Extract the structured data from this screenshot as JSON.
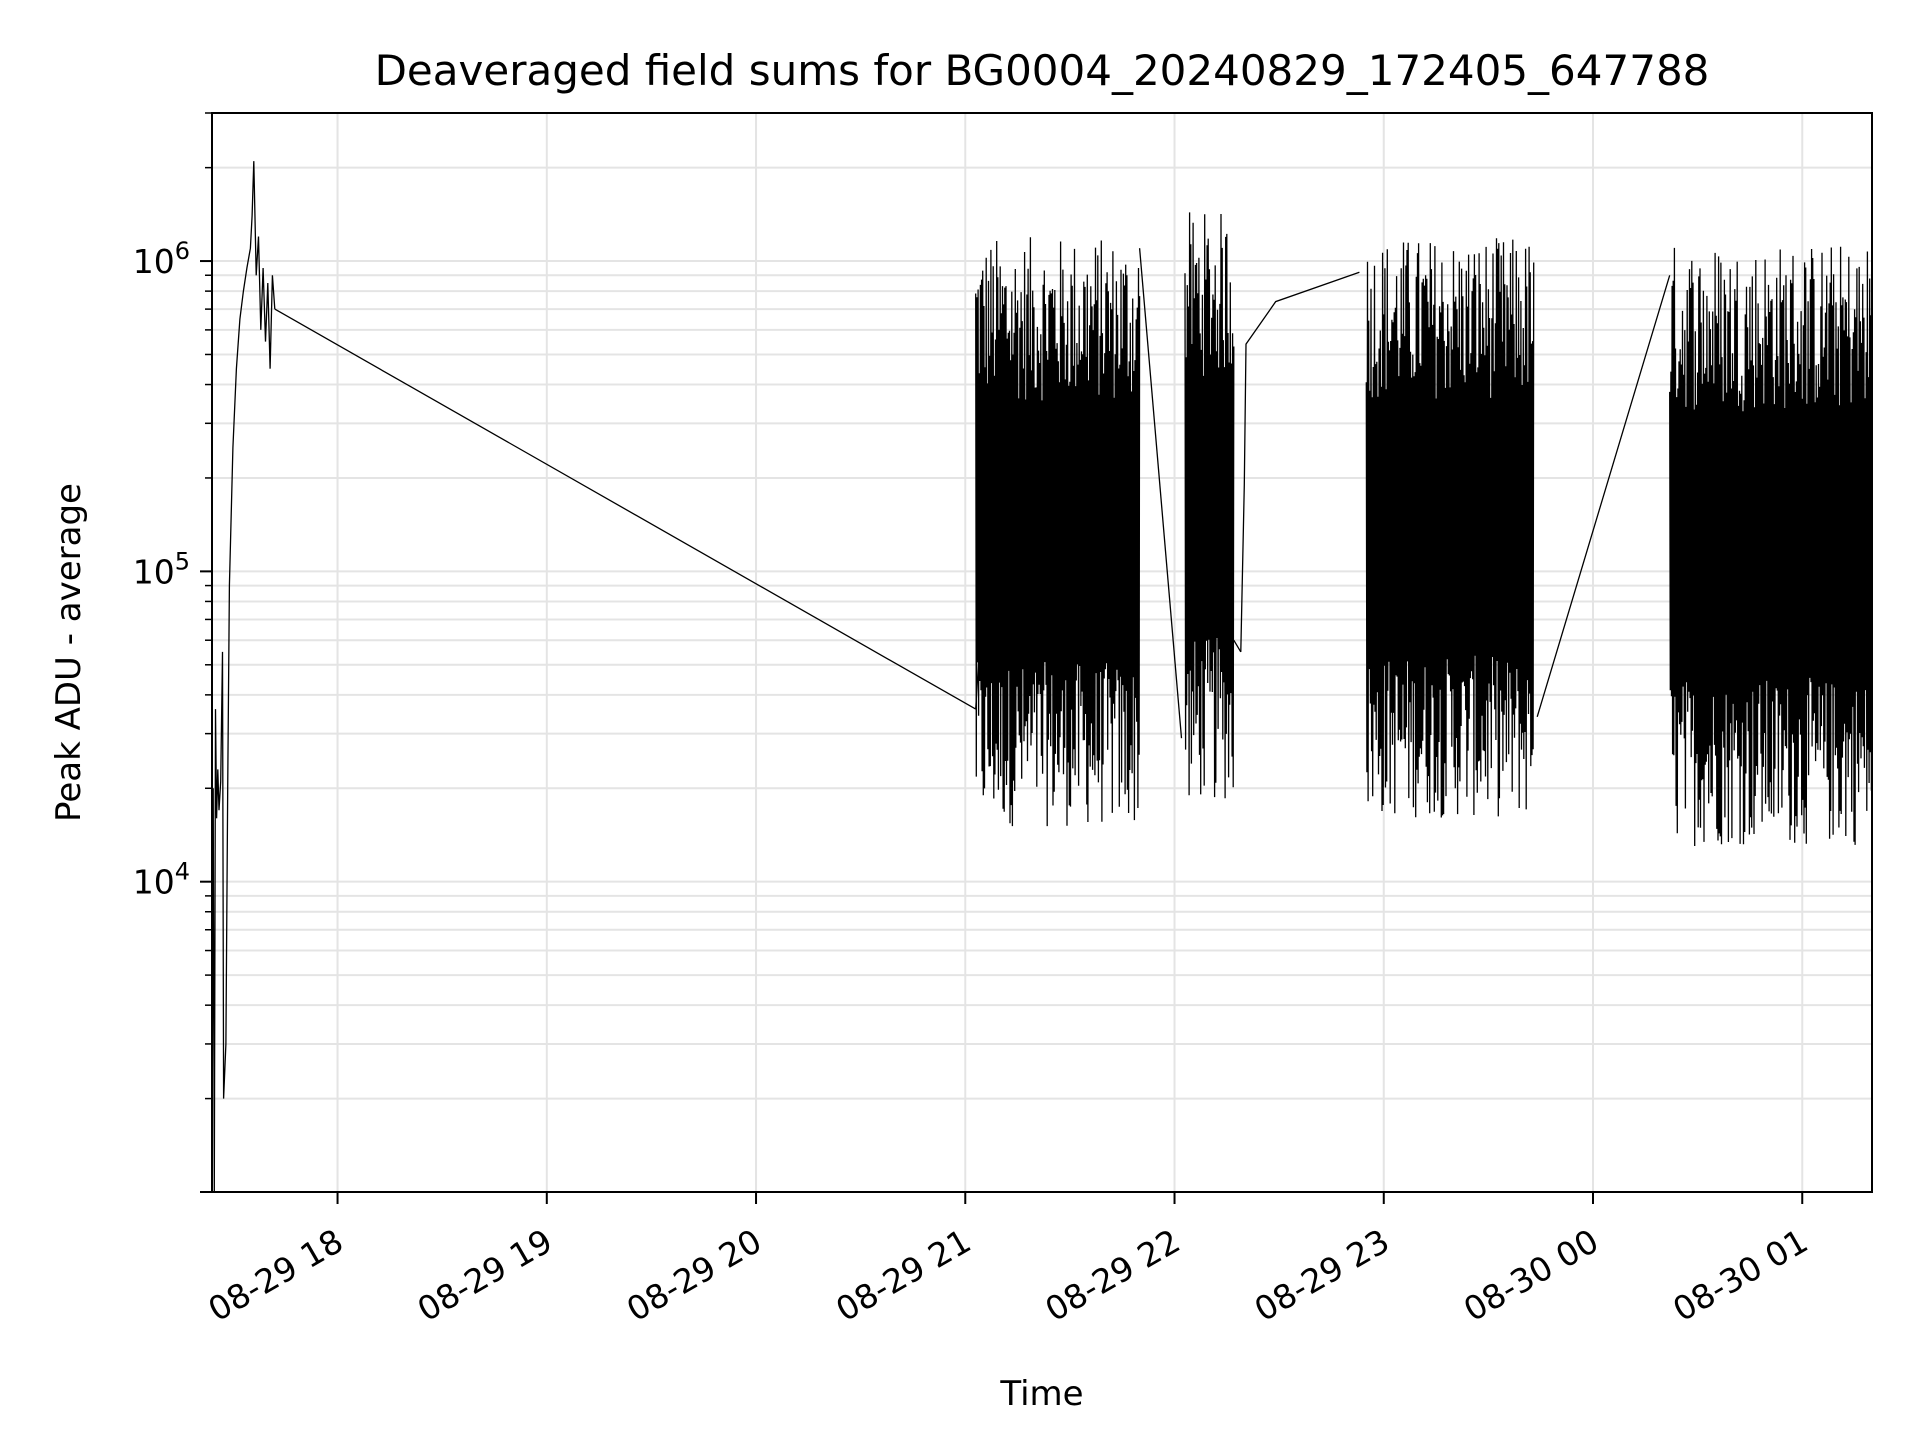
{
  "chart_data": {
    "type": "line",
    "title": "Deaveraged field sums for BG0004_20240829_172405_647788",
    "xlabel": "Time",
    "ylabel": "Peak ADU - average",
    "yscale": "log",
    "xlim": [
      "2024-08-29 17:24",
      "2024-08-30 01:20"
    ],
    "ylim": [
      1000,
      3000000
    ],
    "grid": true,
    "x_ticks": [
      {
        "value": "2024-08-29 18:00",
        "label": "08-29 18"
      },
      {
        "value": "2024-08-29 19:00",
        "label": "08-29 19"
      },
      {
        "value": "2024-08-29 20:00",
        "label": "08-29 20"
      },
      {
        "value": "2024-08-29 21:00",
        "label": "08-29 21"
      },
      {
        "value": "2024-08-29 22:00",
        "label": "08-29 22"
      },
      {
        "value": "2024-08-29 23:00",
        "label": "08-29 23"
      },
      {
        "value": "2024-08-30 00:00",
        "label": "08-30 00"
      },
      {
        "value": "2024-08-30 01:00",
        "label": "08-30 01"
      }
    ],
    "y_ticks": [
      {
        "value": 10000,
        "base": "10",
        "exp": "4"
      },
      {
        "value": 100000,
        "base": "10",
        "exp": "5"
      },
      {
        "value": 1000000,
        "base": "10",
        "exp": "6"
      }
    ],
    "series": [
      {
        "color": "#000000",
        "segments": [
          {
            "x_start": "2024-08-29 17:24",
            "x_end": "2024-08-29 17:46",
            "low": 15000,
            "high": 1200000,
            "points": [
              [
                "2024-08-29 17:24:00",
                1000
              ],
              [
                "2024-08-29 17:24:20",
                20000
              ],
              [
                "2024-08-29 17:24:40",
                1000
              ],
              [
                "2024-08-29 17:25:00",
                36000
              ],
              [
                "2024-08-29 17:25:20",
                16000
              ],
              [
                "2024-08-29 17:25:40",
                23000
              ],
              [
                "2024-08-29 17:26:00",
                17000
              ],
              [
                "2024-08-29 17:26:30",
                21000
              ],
              [
                "2024-08-29 17:27:00",
                55000
              ],
              [
                "2024-08-29 17:27:20",
                2000
              ],
              [
                "2024-08-29 17:28:00",
                3000
              ],
              [
                "2024-08-29 17:28:30",
                20000
              ],
              [
                "2024-08-29 17:29:00",
                90000
              ],
              [
                "2024-08-29 17:30:00",
                250000
              ],
              [
                "2024-08-29 17:31:00",
                450000
              ],
              [
                "2024-08-29 17:32:00",
                650000
              ],
              [
                "2024-08-29 17:33:00",
                800000
              ],
              [
                "2024-08-29 17:34:00",
                950000
              ],
              [
                "2024-08-29 17:35:00",
                1100000
              ],
              [
                "2024-08-29 17:35:30",
                1400000
              ],
              [
                "2024-08-29 17:36:00",
                2100000
              ],
              [
                "2024-08-29 17:36:40",
                900000
              ],
              [
                "2024-08-29 17:37:20",
                1200000
              ],
              [
                "2024-08-29 17:38:00",
                600000
              ],
              [
                "2024-08-29 17:38:40",
                950000
              ],
              [
                "2024-08-29 17:39:20",
                550000
              ],
              [
                "2024-08-29 17:40:00",
                850000
              ],
              [
                "2024-08-29 17:40:40",
                450000
              ],
              [
                "2024-08-29 17:41:20",
                900000
              ],
              [
                "2024-08-29 17:42:00",
                700000
              ]
            ]
          },
          {
            "x_start": "2024-08-29 21:03",
            "x_end": "2024-08-29 21:50",
            "low": 15000,
            "high": 1200000,
            "points": [
              [
                "2024-08-29 21:03:00",
                36000
              ],
              [
                "2024-08-29 21:04:00",
                55000
              ],
              [
                "2024-08-29 21:05:00",
                40000
              ]
            ]
          },
          {
            "x_start": "2024-08-29 22:03",
            "x_end": "2024-08-29 22:17",
            "low": 18000,
            "high": 1450000,
            "points": [
              [
                "2024-08-29 22:17:00",
                60000
              ],
              [
                "2024-08-29 22:19:00",
                55000
              ]
            ]
          },
          {
            "x_start": "2024-08-29 22:55",
            "x_end": "2024-08-29 23:43",
            "low": 16000,
            "high": 1200000,
            "points": []
          },
          {
            "x_start": "2024-08-30 00:22",
            "x_end": "2024-08-30 01:20",
            "low": 13000,
            "high": 1150000,
            "points": []
          }
        ],
        "connectors": [
          [
            [
              "2024-08-29 17:42:00",
              700000
            ],
            [
              "2024-08-29 21:03:00",
              36000
            ]
          ],
          [
            [
              "2024-08-29 21:50:00",
              1100000
            ],
            [
              "2024-08-29 22:02:00",
              29000
            ]
          ],
          [
            [
              "2024-08-29 22:19:00",
              55000
            ],
            [
              "2024-08-29 22:20:00",
              190000
            ],
            [
              "2024-08-29 22:20:30",
              540000
            ],
            [
              "2024-08-29 22:29:00",
              740000
            ],
            [
              "2024-08-29 22:53:00",
              920000
            ]
          ],
          [
            [
              "2024-08-29 23:44:00",
              34000
            ],
            [
              "2024-08-30 00:22:00",
              900000
            ]
          ]
        ]
      }
    ]
  }
}
